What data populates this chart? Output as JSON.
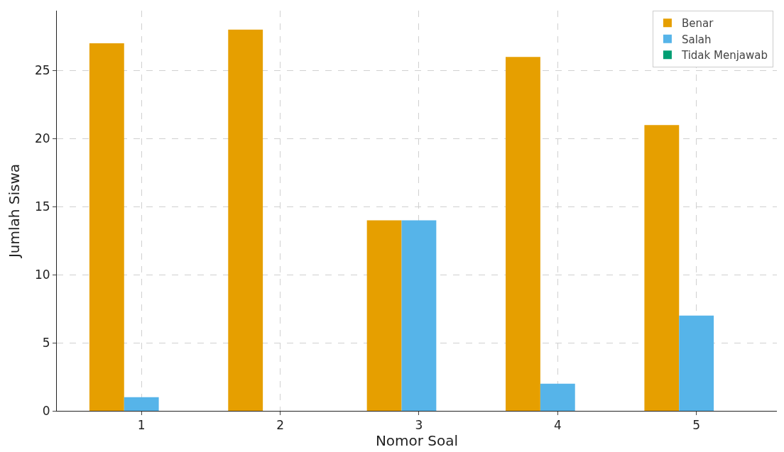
{
  "chart_data": {
    "type": "bar",
    "xlabel": "Nomor Soal",
    "ylabel": "Jumlah Siswa",
    "categories": [
      "1",
      "2",
      "3",
      "4",
      "5"
    ],
    "series": [
      {
        "name": "Benar",
        "color": "#e69f00",
        "values": [
          27,
          28,
          14,
          26,
          21
        ]
      },
      {
        "name": "Salah",
        "color": "#56b4e9",
        "values": [
          1,
          0,
          14,
          2,
          7
        ]
      },
      {
        "name": "Tidak Menjawab",
        "color": "#009e73",
        "values": [
          0,
          0,
          0,
          0,
          0
        ]
      }
    ],
    "ylim": [
      0,
      29.4
    ],
    "yticks": [
      0,
      5,
      10,
      15,
      20,
      25
    ],
    "grid": true,
    "legend": "top right"
  }
}
